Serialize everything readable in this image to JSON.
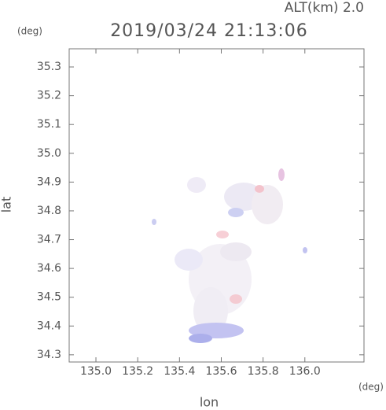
{
  "chart_data": {
    "type": "map",
    "header": "ALT(km) 2.0",
    "title": "2019/03/24 21:13:06",
    "y_unit": "(deg)",
    "x_unit": "(deg)",
    "ylabel": "lat",
    "xlabel": "lon",
    "xlim": [
      134.872,
      136.283
    ],
    "ylim": [
      34.275,
      35.363
    ],
    "xticks": [
      {
        "value": 135.0,
        "label": "135.0"
      },
      135.2,
      135.4,
      135.6,
      135.8,
      {
        "value": 136.0,
        "label": "136.0"
      }
    ],
    "yticks": [
      34.3,
      34.4,
      34.5,
      34.6,
      34.7,
      34.8,
      34.9,
      {
        "value": 35.0,
        "label": "35.0"
      },
      35.1,
      35.2,
      35.3
    ]
  }
}
